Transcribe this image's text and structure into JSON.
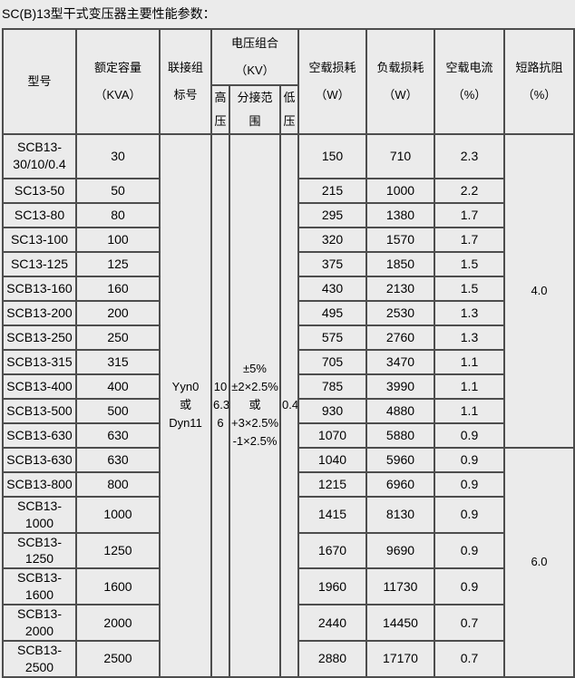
{
  "title": "SC(B)13型干式变压器主要性能参数：",
  "table": {
    "headers": {
      "model": "型号",
      "capacity": "额定容量\n（KVA）",
      "connection": "联接组\n标号",
      "voltage_group": "电压组合\n（KV）",
      "hv": "高\n压",
      "tap_range": "分接范\n围",
      "lv": "低\n压",
      "no_load_loss": "空载损耗\n（W）",
      "load_loss": "负载损耗\n（W）",
      "no_load_current": "空载电流\n（%）",
      "impedance": "短路抗阻\n（%）"
    },
    "merged": {
      "connection": "Yyn0\n或\nDyn11",
      "hv": "10\n6.3\n6",
      "tap_range": "±5%\n±2×2.5%\n或\n+3×2.5%\n-1×2.5%",
      "lv": "0.4"
    },
    "impedance_groups": [
      {
        "value": "4.0",
        "row_count": 12
      },
      {
        "value": "6.0",
        "row_count": 7
      }
    ],
    "rows": [
      {
        "model": "SCB13-\n30/10/0.4",
        "capacity": "30",
        "no_load_loss": "150",
        "load_loss": "710",
        "no_load_current": "2.3"
      },
      {
        "model": "SC13-50",
        "capacity": "50",
        "no_load_loss": "215",
        "load_loss": "1000",
        "no_load_current": "2.2"
      },
      {
        "model": "SC13-80",
        "capacity": "80",
        "no_load_loss": "295",
        "load_loss": "1380",
        "no_load_current": "1.7"
      },
      {
        "model": "SC13-100",
        "capacity": "100",
        "no_load_loss": "320",
        "load_loss": "1570",
        "no_load_current": "1.7"
      },
      {
        "model": "SC13-125",
        "capacity": "125",
        "no_load_loss": "375",
        "load_loss": "1850",
        "no_load_current": "1.5"
      },
      {
        "model": "SCB13-160",
        "capacity": "160",
        "no_load_loss": "430",
        "load_loss": "2130",
        "no_load_current": "1.5"
      },
      {
        "model": "SCB13-200",
        "capacity": "200",
        "no_load_loss": "495",
        "load_loss": "2530",
        "no_load_current": "1.3"
      },
      {
        "model": "SCB13-250",
        "capacity": "250",
        "no_load_loss": "575",
        "load_loss": "2760",
        "no_load_current": "1.3"
      },
      {
        "model": "SCB13-315",
        "capacity": "315",
        "no_load_loss": "705",
        "load_loss": "3470",
        "no_load_current": "1.1"
      },
      {
        "model": "SCB13-400",
        "capacity": "400",
        "no_load_loss": "785",
        "load_loss": "3990",
        "no_load_current": "1.1"
      },
      {
        "model": "SCB13-500",
        "capacity": "500",
        "no_load_loss": "930",
        "load_loss": "4880",
        "no_load_current": "1.1"
      },
      {
        "model": "SCB13-630",
        "capacity": "630",
        "no_load_loss": "1070",
        "load_loss": "5880",
        "no_load_current": "0.9"
      },
      {
        "model": "SCB13-630",
        "capacity": "630",
        "no_load_loss": "1040",
        "load_loss": "5960",
        "no_load_current": "0.9"
      },
      {
        "model": "SCB13-800",
        "capacity": "800",
        "no_load_loss": "1215",
        "load_loss": "6960",
        "no_load_current": "0.9"
      },
      {
        "model": "SCB13-1000",
        "capacity": "1000",
        "no_load_loss": "1415",
        "load_loss": "8130",
        "no_load_current": "0.9"
      },
      {
        "model": "SCB13-1250",
        "capacity": "1250",
        "no_load_loss": "1670",
        "load_loss": "9690",
        "no_load_current": "0.9"
      },
      {
        "model": "SCB13-1600",
        "capacity": "1600",
        "no_load_loss": "1960",
        "load_loss": "11730",
        "no_load_current": "0.9"
      },
      {
        "model": "SCB13-2000",
        "capacity": "2000",
        "no_load_loss": "2440",
        "load_loss": "14450",
        "no_load_current": "0.7"
      },
      {
        "model": "SCB13-2500",
        "capacity": "2500",
        "no_load_loss": "2880",
        "load_loss": "17170",
        "no_load_current": "0.7"
      }
    ]
  }
}
